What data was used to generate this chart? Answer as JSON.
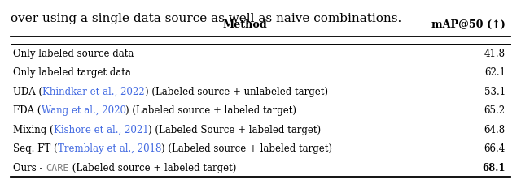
{
  "caption": "over using a single data source as well as naive combinations.",
  "col_headers": [
    "Method",
    "mAP@50 (↑)"
  ],
  "rows": [
    {
      "method_parts": [
        {
          "text": "Only labeled source data",
          "color": "#000000",
          "family": "DejaVu Serif"
        }
      ],
      "value": "41.8",
      "bold_value": false
    },
    {
      "method_parts": [
        {
          "text": "Only labeled target data",
          "color": "#000000",
          "family": "DejaVu Serif"
        }
      ],
      "value": "62.1",
      "bold_value": false
    },
    {
      "method_parts": [
        {
          "text": "UDA (",
          "color": "#000000",
          "family": "DejaVu Serif"
        },
        {
          "text": "Khindkar et al., 2022",
          "color": "#4169E1",
          "family": "DejaVu Serif"
        },
        {
          "text": ") (Labeled source + unlabeled target)",
          "color": "#000000",
          "family": "DejaVu Serif"
        }
      ],
      "value": "53.1",
      "bold_value": false
    },
    {
      "method_parts": [
        {
          "text": "FDA (",
          "color": "#000000",
          "family": "DejaVu Serif"
        },
        {
          "text": "Wang et al., 2020",
          "color": "#4169E1",
          "family": "DejaVu Serif"
        },
        {
          "text": ") (Labeled source + labeled target)",
          "color": "#000000",
          "family": "DejaVu Serif"
        }
      ],
      "value": "65.2",
      "bold_value": false
    },
    {
      "method_parts": [
        {
          "text": "Mixing (",
          "color": "#000000",
          "family": "DejaVu Serif"
        },
        {
          "text": "Kishore et al., 2021",
          "color": "#4169E1",
          "family": "DejaVu Serif"
        },
        {
          "text": ") (Labeled Source + labeled target)",
          "color": "#000000",
          "family": "DejaVu Serif"
        }
      ],
      "value": "64.8",
      "bold_value": false
    },
    {
      "method_parts": [
        {
          "text": "Seq. FT (",
          "color": "#000000",
          "family": "DejaVu Serif"
        },
        {
          "text": "Tremblay et al., 2018",
          "color": "#4169E1",
          "family": "DejaVu Serif"
        },
        {
          "text": ") (Labeled source + labeled target)",
          "color": "#000000",
          "family": "DejaVu Serif"
        }
      ],
      "value": "66.4",
      "bold_value": false
    },
    {
      "method_parts": [
        {
          "text": "Ours - ",
          "color": "#000000",
          "family": "DejaVu Serif"
        },
        {
          "text": "CARE",
          "color": "#808080",
          "family": "DejaVu Sans Mono"
        },
        {
          "text": " (Labeled source + labeled target)",
          "color": "#000000",
          "family": "DejaVu Serif"
        }
      ],
      "value": "68.1",
      "bold_value": true
    }
  ],
  "fig_width": 6.4,
  "fig_height": 2.28,
  "dpi": 100,
  "background_color": "#ffffff",
  "fontsize": 8.5,
  "header_fontsize": 9.2,
  "caption_fontsize": 11.0
}
